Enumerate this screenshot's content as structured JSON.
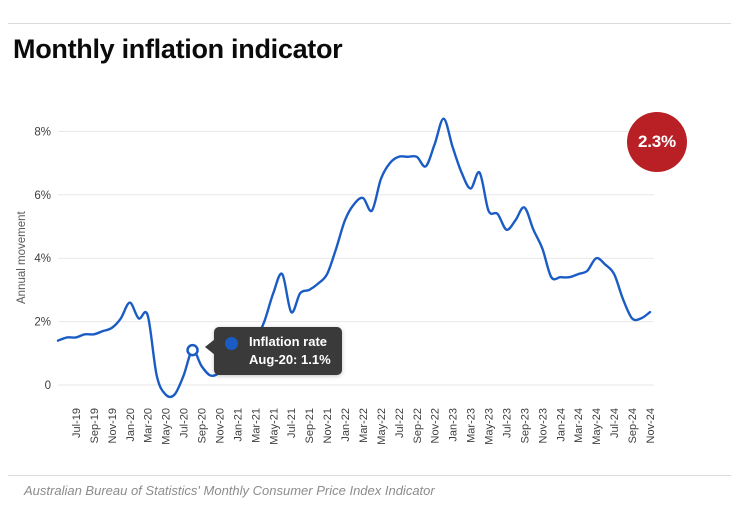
{
  "page": {
    "title": "Monthly inflation indicator",
    "source_note": "Australian Bureau of Statistics' Monthly Consumer Price Index Indicator"
  },
  "badge": {
    "label": "2.3%",
    "color": "#b82025"
  },
  "tooltip": {
    "series_label": "Inflation rate",
    "value_label": "Aug-20: 1.1%",
    "bg_color": "#3a3a3a",
    "marker_color": "#1b5cc4"
  },
  "chart_data": {
    "type": "line",
    "title": "Monthly inflation indicator",
    "xlabel": "",
    "ylabel": "Annual movement",
    "ylim": [
      -0.5,
      8.6
    ],
    "grid": "horizontal",
    "legend": "none",
    "line_color": "#1b5cc4",
    "gridline_color": "#e7e7e7",
    "tick_color": "#3e3e3e",
    "y_ticks": {
      "values": [
        0,
        2,
        4,
        6,
        8
      ],
      "labels": [
        "0",
        "2%",
        "4%",
        "6%",
        "8%"
      ]
    },
    "x": [
      "May-19",
      "Jun-19",
      "Jul-19",
      "Aug-19",
      "Sep-19",
      "Oct-19",
      "Nov-19",
      "Dec-19",
      "Jan-20",
      "Feb-20",
      "Mar-20",
      "Apr-20",
      "May-20",
      "Jun-20",
      "Jul-20",
      "Aug-20",
      "Sep-20",
      "Oct-20",
      "Nov-20",
      "Dec-20",
      "Jan-21",
      "Feb-21",
      "Mar-21",
      "Apr-21",
      "May-21",
      "Jun-21",
      "Jul-21",
      "Aug-21",
      "Sep-21",
      "Oct-21",
      "Nov-21",
      "Dec-21",
      "Jan-22",
      "Feb-22",
      "Mar-22",
      "Apr-22",
      "May-22",
      "Jun-22",
      "Jul-22",
      "Aug-22",
      "Sep-22",
      "Oct-22",
      "Nov-22",
      "Dec-22",
      "Jan-23",
      "Feb-23",
      "Mar-23",
      "Apr-23",
      "May-23",
      "Jun-23",
      "Jul-23",
      "Aug-23",
      "Sep-23",
      "Oct-23",
      "Nov-23",
      "Dec-23",
      "Jan-24",
      "Feb-24",
      "Mar-24",
      "Apr-24",
      "May-24",
      "Jun-24",
      "Jul-24",
      "Aug-24",
      "Sep-24",
      "Oct-24",
      "Nov-24"
    ],
    "x_tick_labels": [
      "Jul-19",
      "Sep-19",
      "Nov-19",
      "Jan-20",
      "Mar-20",
      "May-20",
      "Jul-20",
      "Sep-20",
      "Nov-20",
      "Jan-21",
      "Mar-21",
      "May-21",
      "Jul-21",
      "Sep-21",
      "Nov-21",
      "Jan-22",
      "Mar-22",
      "May-22",
      "Jul-22",
      "Sep-22",
      "Nov-22",
      "Jan-23",
      "Mar-23",
      "May-23",
      "Jul-23",
      "Sep-23",
      "Nov-23",
      "Jan-24",
      "Mar-24",
      "May-24",
      "Jul-24",
      "Sep-24",
      "Nov-24"
    ],
    "series": [
      {
        "name": "Inflation rate",
        "values": [
          1.4,
          1.5,
          1.5,
          1.6,
          1.6,
          1.7,
          1.8,
          2.1,
          2.6,
          2.1,
          2.2,
          0.3,
          -0.3,
          -0.3,
          0.3,
          1.1,
          0.6,
          0.3,
          0.4,
          0.8,
          0.7,
          1.0,
          1.4,
          2.0,
          2.9,
          3.5,
          2.3,
          2.9,
          3.0,
          3.2,
          3.5,
          4.3,
          5.2,
          5.7,
          5.9,
          5.5,
          6.5,
          7.0,
          7.2,
          7.2,
          7.2,
          6.9,
          7.6,
          8.4,
          7.5,
          6.7,
          6.2,
          6.7,
          5.5,
          5.4,
          4.9,
          5.2,
          5.6,
          4.9,
          4.3,
          3.4,
          3.4,
          3.4,
          3.5,
          3.6,
          4.0,
          3.8,
          3.5,
          2.7,
          2.1,
          2.1,
          2.3
        ]
      }
    ],
    "highlighted_point": {
      "x": "Aug-20",
      "value": 1.1
    },
    "latest_point": {
      "x": "Nov-24",
      "value": 2.3
    }
  }
}
